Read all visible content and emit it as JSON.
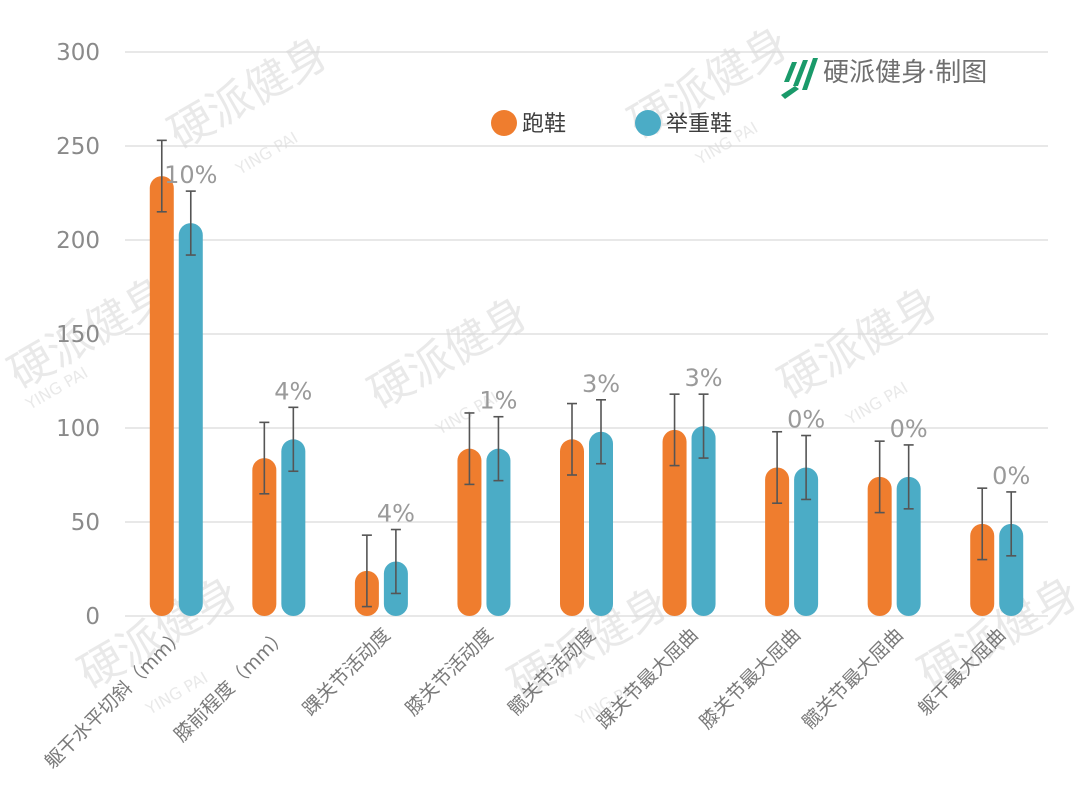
{
  "brand": {
    "text": "硬派健身·制图",
    "logo_color": "#1a9a6a",
    "logo_icon": "yingpai-logo-icon"
  },
  "watermark": {
    "cn": "硬派健身",
    "en": "YING PAI"
  },
  "colors": {
    "running": "#ef7d2e",
    "weightlifting": "#4bacc6",
    "grid": "#d9d9d9",
    "error_bar": "#555555"
  },
  "chart_data": {
    "type": "bar",
    "title": "",
    "xlabel": "",
    "ylabel": "",
    "ylim": [
      0,
      300
    ],
    "yticks": [
      0,
      50,
      100,
      150,
      200,
      250,
      300
    ],
    "grid": true,
    "legend_position": "top",
    "categories": [
      "躯干水平切斜（mm）",
      "膝前程度（mm）",
      "踝关节活动度",
      "膝关节活动度",
      "髋关节活动度",
      "踝关节最大屈曲",
      "膝关节最大屈曲",
      "髋关节最大屈曲",
      "躯干最大屈曲"
    ],
    "series": [
      {
        "name": "跑鞋",
        "values": [
          234,
          84,
          24,
          89,
          94,
          99,
          79,
          74,
          49
        ],
        "error": [
          19,
          19,
          19,
          19,
          19,
          19,
          19,
          19,
          19
        ]
      },
      {
        "name": "举重鞋",
        "values": [
          209,
          94,
          29,
          89,
          98,
          101,
          79,
          74,
          49
        ],
        "error": [
          17,
          17,
          17,
          17,
          17,
          17,
          17,
          17,
          17
        ]
      }
    ],
    "annotations": [
      "10%",
      "4%",
      "4%",
      "1%",
      "3%",
      "3%",
      "0%",
      "0%",
      "0%"
    ]
  }
}
